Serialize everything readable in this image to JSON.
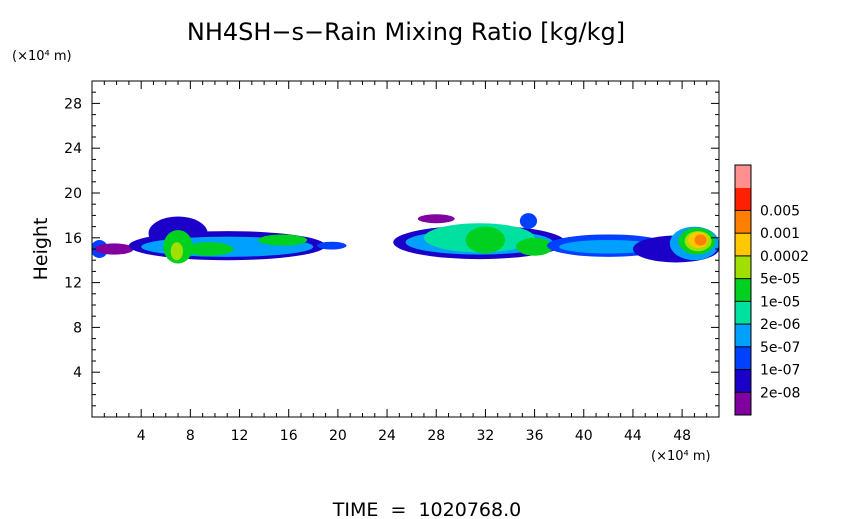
{
  "chart_data": {
    "type": "heatmap",
    "title": "NH4SH−s−Rain Mixing Ratio [kg/kg]",
    "xlabel": "",
    "ylabel": "Height",
    "x_unit": "(×10⁴ m)",
    "y_unit": "(×10⁴ m)",
    "footer": "TIME  =  1020768.0",
    "xlim": [
      0,
      51
    ],
    "ylim": [
      0,
      30
    ],
    "x_ticks": [
      4,
      8,
      12,
      16,
      20,
      24,
      28,
      32,
      36,
      40,
      44,
      48
    ],
    "y_ticks": [
      4,
      8,
      12,
      16,
      20,
      24,
      28
    ],
    "grid": false,
    "legend": {
      "placement": "right",
      "levels": [
        "2e-08",
        "1e-07",
        "5e-07",
        "2e-06",
        "1e-05",
        "5e-05",
        "0.0002",
        "0.001",
        "0.005"
      ],
      "colors": [
        "#8000a0",
        "#1a00c8",
        "#0040ff",
        "#00a0ff",
        "#00e0a0",
        "#00d020",
        "#a0e000",
        "#ffc800",
        "#ff8000",
        "#ff2000",
        "#ff9090"
      ]
    },
    "features": [
      {
        "xc": 0.6,
        "yc": 15.0,
        "rx": 0.7,
        "ry": 0.8,
        "level": 2
      },
      {
        "xc": 1.8,
        "yc": 15.0,
        "rx": 1.6,
        "ry": 0.5,
        "level": 0
      },
      {
        "xc": 11.0,
        "yc": 15.3,
        "rx": 8.0,
        "ry": 1.3,
        "level": 1
      },
      {
        "xc": 7.0,
        "yc": 16.4,
        "rx": 2.4,
        "ry": 1.5,
        "level": 1
      },
      {
        "xc": 11.0,
        "yc": 15.2,
        "rx": 7.0,
        "ry": 0.9,
        "level": 3
      },
      {
        "xc": 7.0,
        "yc": 15.2,
        "rx": 1.2,
        "ry": 1.5,
        "level": 5
      },
      {
        "xc": 9.5,
        "yc": 15.0,
        "rx": 2.0,
        "ry": 0.6,
        "level": 5
      },
      {
        "xc": 15.5,
        "yc": 15.8,
        "rx": 2.0,
        "ry": 0.5,
        "level": 5
      },
      {
        "xc": 6.9,
        "yc": 14.8,
        "rx": 0.5,
        "ry": 0.8,
        "level": 6
      },
      {
        "xc": 19.5,
        "yc": 15.3,
        "rx": 1.2,
        "ry": 0.35,
        "level": 2
      },
      {
        "xc": 31.5,
        "yc": 15.6,
        "rx": 7.0,
        "ry": 1.5,
        "level": 1
      },
      {
        "xc": 31.5,
        "yc": 15.6,
        "rx": 6.0,
        "ry": 1.1,
        "level": 3
      },
      {
        "xc": 31.5,
        "yc": 16.0,
        "rx": 4.5,
        "ry": 1.3,
        "level": 4
      },
      {
        "xc": 32.0,
        "yc": 15.8,
        "rx": 1.6,
        "ry": 1.2,
        "level": 5
      },
      {
        "xc": 36.0,
        "yc": 15.2,
        "rx": 1.5,
        "ry": 0.8,
        "level": 5
      },
      {
        "xc": 35.5,
        "yc": 17.5,
        "rx": 0.7,
        "ry": 0.7,
        "level": 2
      },
      {
        "xc": 28.0,
        "yc": 17.7,
        "rx": 1.5,
        "ry": 0.4,
        "level": 0
      },
      {
        "xc": 42.0,
        "yc": 15.3,
        "rx": 5.0,
        "ry": 1.0,
        "level": 2
      },
      {
        "xc": 42.0,
        "yc": 15.2,
        "rx": 4.0,
        "ry": 0.6,
        "level": 3
      },
      {
        "xc": 47.5,
        "yc": 15.0,
        "rx": 3.5,
        "ry": 1.2,
        "level": 1
      },
      {
        "xc": 49.0,
        "yc": 15.5,
        "rx": 2.0,
        "ry": 1.5,
        "level": 3
      },
      {
        "xc": 49.2,
        "yc": 15.7,
        "rx": 1.5,
        "ry": 1.2,
        "level": 5
      },
      {
        "xc": 49.3,
        "yc": 15.7,
        "rx": 1.1,
        "ry": 0.9,
        "level": 6
      },
      {
        "xc": 49.3,
        "yc": 15.8,
        "rx": 0.8,
        "ry": 0.7,
        "level": 7
      },
      {
        "xc": 49.5,
        "yc": 15.8,
        "rx": 0.5,
        "ry": 0.5,
        "level": 8
      }
    ]
  }
}
